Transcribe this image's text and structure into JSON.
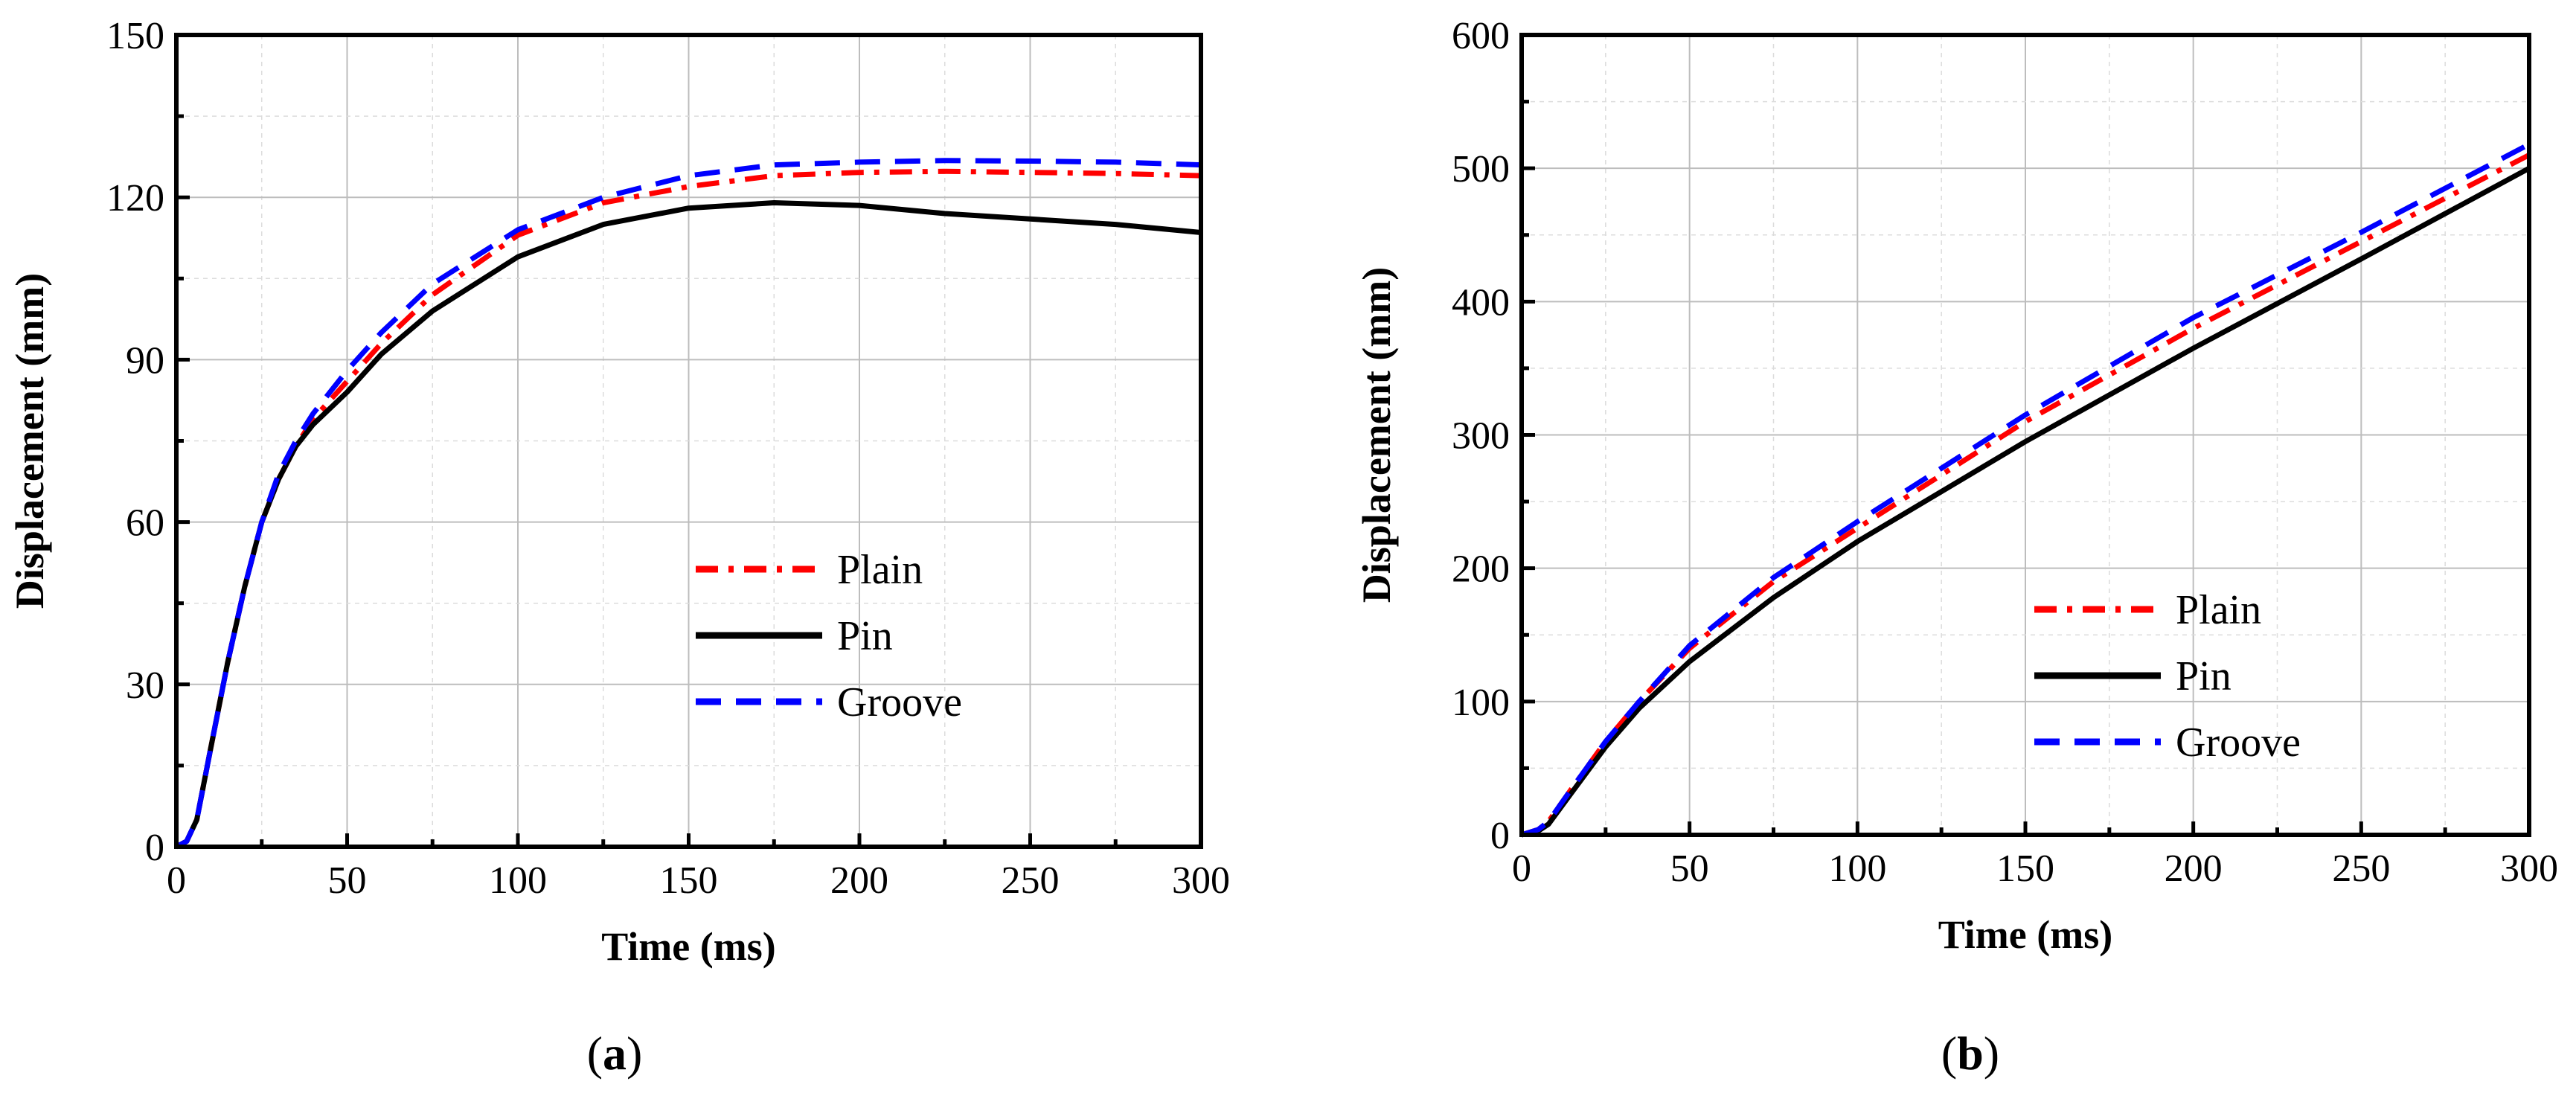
{
  "chart_data": [
    {
      "type": "line",
      "panel_label": "a",
      "xlabel": "Time (ms)",
      "ylabel": "Displacement (mm)",
      "xlim": [
        0,
        300
      ],
      "ylim": [
        0,
        150
      ],
      "xticks": [
        0,
        50,
        100,
        150,
        200,
        250,
        300
      ],
      "yticks": [
        0,
        30,
        60,
        90,
        120,
        150
      ],
      "grid": true,
      "legend_position": "lower-right",
      "series": [
        {
          "name": "Plain",
          "color": "#ff0000",
          "style": "dash-dot",
          "points": [
            [
              0,
              0
            ],
            [
              3,
              1
            ],
            [
              6,
              5
            ],
            [
              10,
              18
            ],
            [
              15,
              34
            ],
            [
              20,
              48
            ],
            [
              25,
              60
            ],
            [
              30,
              68
            ],
            [
              35,
              74
            ],
            [
              40,
              79
            ],
            [
              50,
              86
            ],
            [
              60,
              93
            ],
            [
              75,
              102
            ],
            [
              100,
              113
            ],
            [
              125,
              119
            ],
            [
              150,
              122
            ],
            [
              175,
              124
            ],
            [
              200,
              124.6
            ],
            [
              225,
              124.8
            ],
            [
              250,
              124.6
            ],
            [
              275,
              124.4
            ],
            [
              300,
              124
            ]
          ]
        },
        {
          "name": "Pin",
          "color": "#000000",
          "style": "solid",
          "points": [
            [
              0,
              0
            ],
            [
              3,
              1
            ],
            [
              6,
              5
            ],
            [
              10,
              18
            ],
            [
              15,
              34
            ],
            [
              20,
              48
            ],
            [
              25,
              60
            ],
            [
              30,
              68
            ],
            [
              35,
              74
            ],
            [
              40,
              78
            ],
            [
              50,
              84
            ],
            [
              60,
              91
            ],
            [
              75,
              99
            ],
            [
              100,
              109
            ],
            [
              125,
              115
            ],
            [
              150,
              118
            ],
            [
              175,
              119
            ],
            [
              200,
              118.5
            ],
            [
              225,
              117
            ],
            [
              250,
              116
            ],
            [
              275,
              115
            ],
            [
              300,
              113.5
            ]
          ]
        },
        {
          "name": "Groove",
          "color": "#0000ff",
          "style": "dash",
          "points": [
            [
              0,
              0
            ],
            [
              3,
              1
            ],
            [
              6,
              5
            ],
            [
              10,
              18
            ],
            [
              15,
              34
            ],
            [
              20,
              48
            ],
            [
              25,
              60
            ],
            [
              30,
              69
            ],
            [
              35,
              75
            ],
            [
              40,
              80
            ],
            [
              50,
              88
            ],
            [
              60,
              95
            ],
            [
              75,
              104
            ],
            [
              100,
              114
            ],
            [
              125,
              120
            ],
            [
              150,
              124
            ],
            [
              175,
              126
            ],
            [
              200,
              126.5
            ],
            [
              225,
              126.8
            ],
            [
              250,
              126.7
            ],
            [
              275,
              126.5
            ],
            [
              300,
              126
            ]
          ]
        }
      ]
    },
    {
      "type": "line",
      "panel_label": "b",
      "xlabel": "Time (ms)",
      "ylabel": "Displacement (mm)",
      "xlim": [
        0,
        300
      ],
      "ylim": [
        0,
        600
      ],
      "xticks": [
        0,
        50,
        100,
        150,
        200,
        250,
        300
      ],
      "yticks": [
        0,
        100,
        200,
        300,
        400,
        500,
        600
      ],
      "grid": true,
      "legend_position": "lower-right",
      "series": [
        {
          "name": "Plain",
          "color": "#ff0000",
          "style": "dash-dot",
          "points": [
            [
              0,
              0
            ],
            [
              5,
              4
            ],
            [
              8,
              10
            ],
            [
              15,
              35
            ],
            [
              25,
              70
            ],
            [
              35,
              100
            ],
            [
              50,
              140
            ],
            [
              75,
              190
            ],
            [
              100,
              230
            ],
            [
              150,
              310
            ],
            [
              200,
              380
            ],
            [
              250,
              445
            ],
            [
              300,
              510
            ]
          ]
        },
        {
          "name": "Pin",
          "color": "#000000",
          "style": "solid",
          "points": [
            [
              0,
              0
            ],
            [
              5,
              3
            ],
            [
              8,
              8
            ],
            [
              15,
              32
            ],
            [
              25,
              66
            ],
            [
              35,
              95
            ],
            [
              50,
              130
            ],
            [
              75,
              178
            ],
            [
              100,
              220
            ],
            [
              150,
              295
            ],
            [
              200,
              365
            ],
            [
              250,
              432
            ],
            [
              300,
              500
            ]
          ]
        },
        {
          "name": "Groove",
          "color": "#0000ff",
          "style": "dash",
          "points": [
            [
              0,
              0
            ],
            [
              5,
              4
            ],
            [
              8,
              10
            ],
            [
              15,
              35
            ],
            [
              25,
              70
            ],
            [
              35,
              100
            ],
            [
              50,
              142
            ],
            [
              75,
              193
            ],
            [
              100,
              235
            ],
            [
              150,
              315
            ],
            [
              200,
              388
            ],
            [
              250,
              452
            ],
            [
              300,
              518
            ]
          ]
        }
      ]
    }
  ]
}
